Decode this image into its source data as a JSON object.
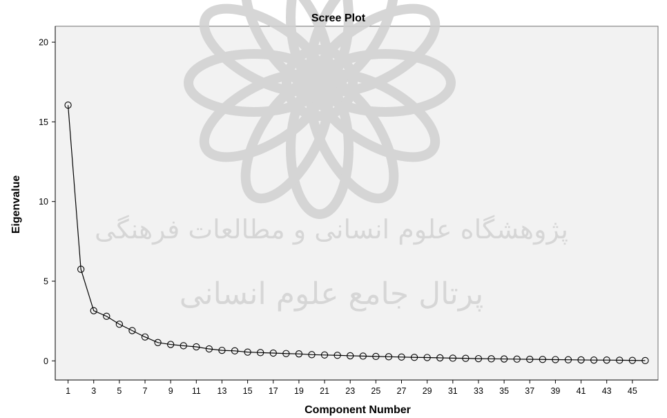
{
  "chart_data": {
    "type": "line",
    "title": "Scree Plot",
    "xlabel": "Component Number",
    "ylabel": "Eigenvalue",
    "xlim": [
      0,
      47
    ],
    "ylim": [
      -1.2,
      21
    ],
    "y_ticks": [
      0,
      5,
      10,
      15,
      20
    ],
    "x_ticks": [
      1,
      3,
      5,
      7,
      9,
      11,
      13,
      15,
      17,
      19,
      21,
      23,
      25,
      27,
      29,
      31,
      33,
      35,
      37,
      39,
      41,
      43,
      45
    ],
    "x": [
      1,
      2,
      3,
      4,
      5,
      6,
      7,
      8,
      9,
      10,
      11,
      12,
      13,
      14,
      15,
      16,
      17,
      18,
      19,
      20,
      21,
      22,
      23,
      24,
      25,
      26,
      27,
      28,
      29,
      30,
      31,
      32,
      33,
      34,
      35,
      36,
      37,
      38,
      39,
      40,
      41,
      42,
      43,
      44,
      45,
      46
    ],
    "values": [
      16.05,
      5.75,
      3.15,
      2.8,
      2.3,
      1.9,
      1.5,
      1.15,
      1.03,
      0.95,
      0.88,
      0.75,
      0.66,
      0.63,
      0.55,
      0.52,
      0.49,
      0.46,
      0.44,
      0.39,
      0.37,
      0.35,
      0.32,
      0.3,
      0.28,
      0.26,
      0.24,
      0.22,
      0.21,
      0.19,
      0.17,
      0.16,
      0.14,
      0.13,
      0.12,
      0.11,
      0.1,
      0.09,
      0.08,
      0.07,
      0.06,
      0.05,
      0.05,
      0.04,
      0.03,
      0.02
    ],
    "grid": false,
    "colors": {
      "plot_background": "#f2f2f2",
      "line": "#000000",
      "marker": "#000000"
    }
  },
  "watermark": {
    "line1": "پژوهشگاه علوم انسانی و مطالعات فرهنگی",
    "line2": "پرتال جامع علوم انسانی",
    "color": "#d2d2d2"
  }
}
